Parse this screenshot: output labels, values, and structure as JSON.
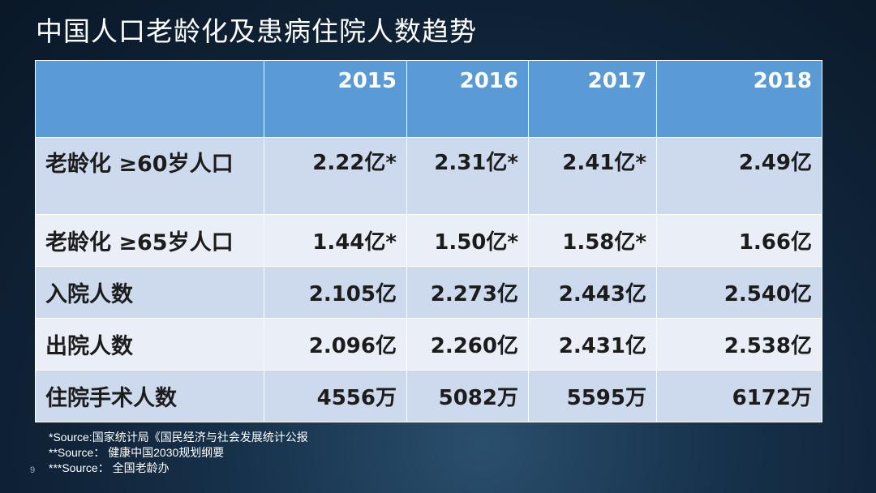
{
  "slide": {
    "title": "中国人口老龄化及患病住院人数趋势",
    "page_number": "9"
  },
  "table": {
    "header": [
      "",
      "2015",
      "2016",
      "2017",
      "2018"
    ],
    "rows": [
      {
        "label": "老龄化  ≥60岁人口",
        "values": [
          "2.22亿*",
          "2.31亿*",
          "2.41亿*",
          "2.49亿"
        ]
      },
      {
        "label": "老龄化  ≥65岁人口",
        "values": [
          "1.44亿*",
          "1.50亿*",
          "1.58亿*",
          "1.66亿"
        ]
      },
      {
        "label": "入院人数",
        "values": [
          "2.105亿",
          "2.273亿",
          "2.443亿",
          "2.540亿"
        ]
      },
      {
        "label": "出院人数",
        "values": [
          "2.096亿",
          "2.260亿",
          "2.431亿",
          "2.538亿"
        ]
      },
      {
        "label": "住院手术人数",
        "values": [
          "4556万",
          "5082万",
          "5595万",
          "6172万"
        ]
      }
    ]
  },
  "notes": [
    "*Source:国家统计局《国民经济与社会发展统计公报",
    "**Source： 健康中国2030规划纲要",
    "***Source： 全国老龄办"
  ],
  "colors": {
    "header_bg": "#5b9bd5",
    "row_dark": "#cdd9ec",
    "row_light": "#e9eef7",
    "background": "#0f2236"
  }
}
